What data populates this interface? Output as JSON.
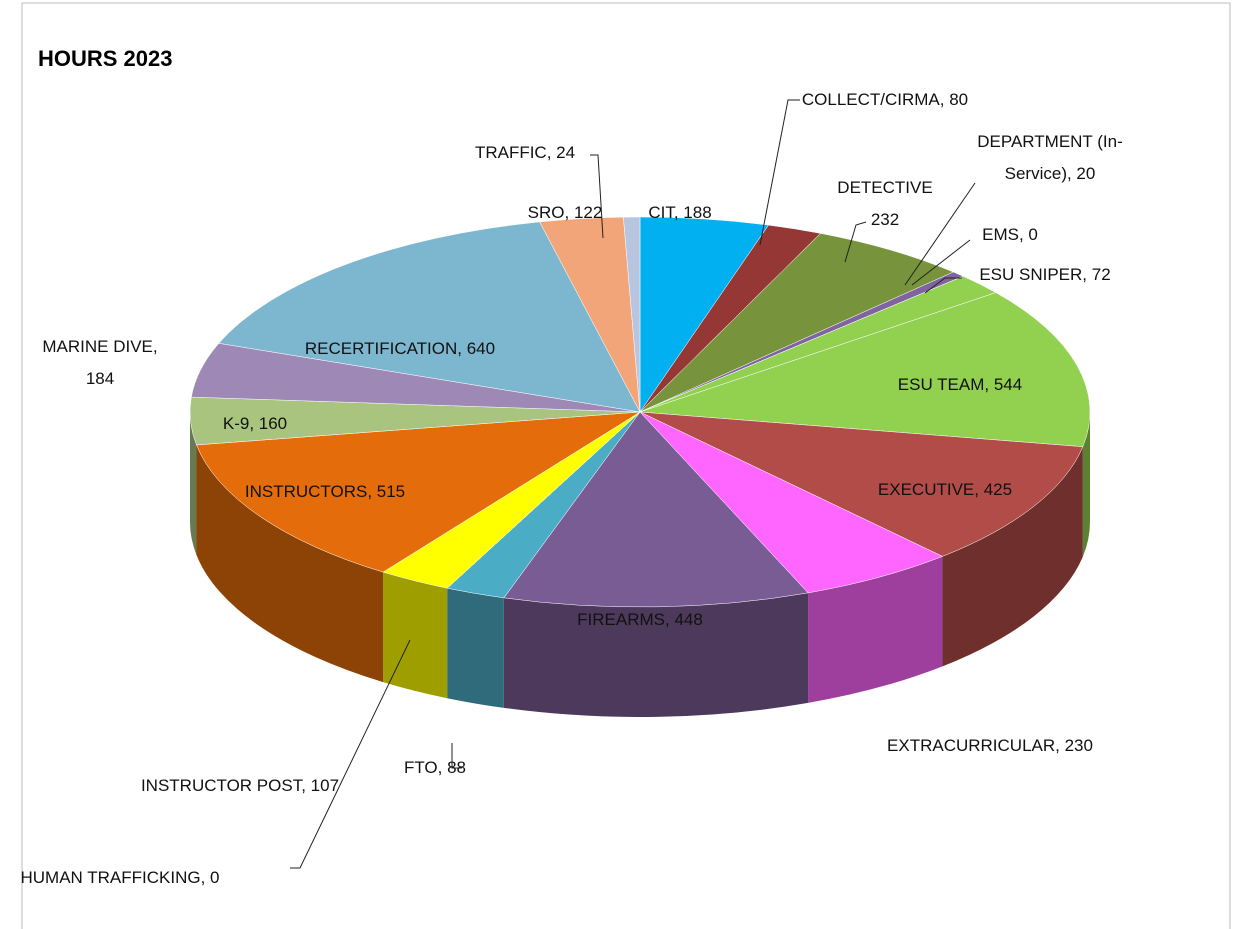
{
  "chart_data": {
    "type": "pie3d",
    "title": "HOURS 2023",
    "categories": [
      "CIT",
      "COLLECT/CIRMA",
      "DETECTIVE",
      "DEPARTMENT (In-Service)",
      "EMS",
      "ESU SNIPER",
      "ESU TEAM",
      "EXECUTIVE",
      "EXTRACURRICULAR",
      "FIREARMS",
      "FTO",
      "HUMAN TRAFFICKING",
      "INSTRUCTOR POST",
      "INSTRUCTORS",
      "K-9",
      "MARINE DIVE",
      "RECERTIFICATION",
      "SRO",
      "TRAFFIC"
    ],
    "values": [
      188,
      80,
      232,
      20,
      0,
      72,
      544,
      425,
      230,
      448,
      88,
      0,
      107,
      515,
      160,
      184,
      640,
      122,
      24
    ],
    "value_labels": [
      "CIT, 188",
      "COLLECT/CIRMA, 80",
      "DETECTIVE 232",
      "DEPARTMENT (In-Service), 20",
      "EMS, 0",
      "ESU SNIPER, 72",
      "ESU TEAM, 544",
      "EXECUTIVE, 425",
      "EXTRACURRICULAR, 230",
      "FIREARMS, 448",
      "FTO, 88",
      "HUMAN TRAFFICKING, 0",
      "INSTRUCTOR POST, 107",
      "INSTRUCTORS, 515",
      "K-9, 160",
      "MARINE DIVE, 184",
      "RECERTIFICATION, 640",
      "SRO, 122",
      "TRAFFIC, 24"
    ],
    "colors": [
      "#00b0f0",
      "#953735",
      "#77933c",
      "#8064a2",
      "#7030a0",
      "#92d050",
      "#92d050",
      "#b24c48",
      "#ff66ff",
      "#7a5c95",
      "#4bacc6",
      "#c00000",
      "#ffff00",
      "#e46c0a",
      "#a9c47f",
      "#9e88b6",
      "#7db7cf",
      "#f2a579",
      "#b7c5e0"
    ]
  }
}
